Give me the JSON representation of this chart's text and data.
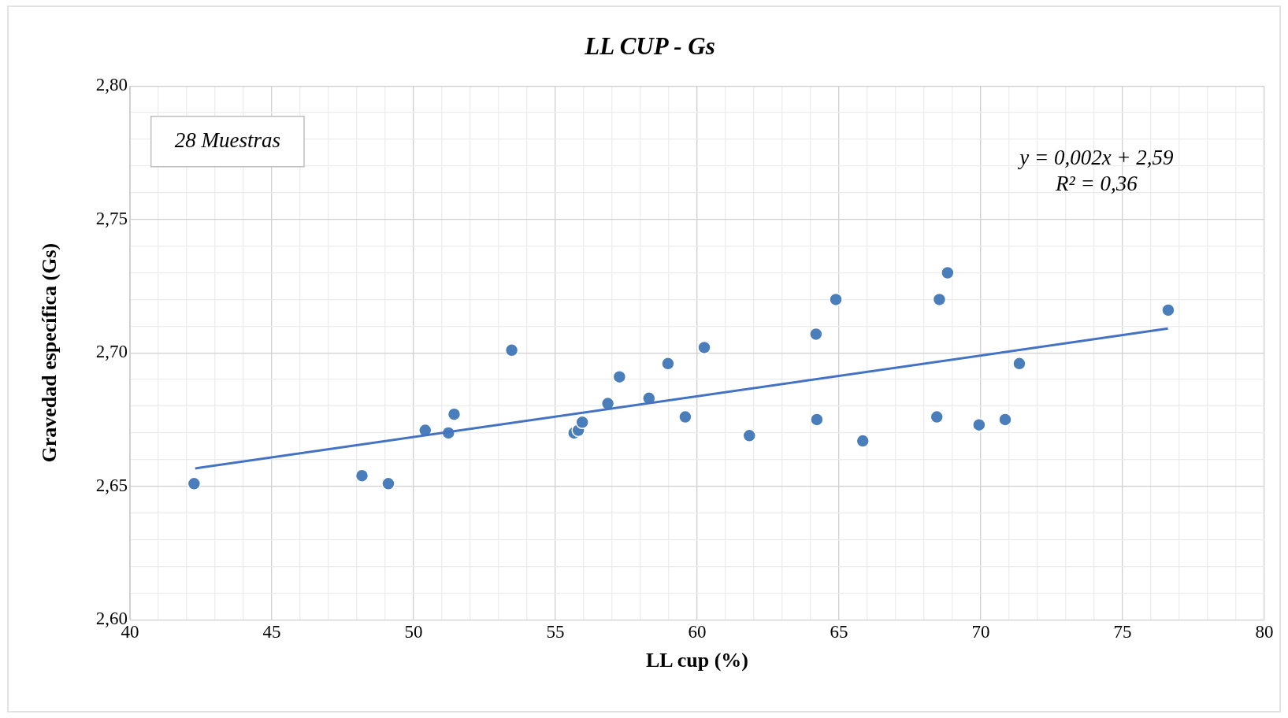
{
  "chart_data": {
    "type": "scatter",
    "title": "LL CUP - Gs",
    "xlabel": "LL cup (%)",
    "ylabel": "Gravedad específica (Gs)",
    "annotations": [
      "28 Muestras",
      "y = 0,002x + 2,59",
      "R² = 0,36"
    ],
    "xlim": [
      40,
      80
    ],
    "ylim": [
      2.6,
      2.8
    ],
    "xticks": [
      40,
      {
        "value": 41,
        "label": null
      },
      {
        "value": 42,
        "label": null
      },
      {
        "value": 43,
        "label": null
      },
      {
        "value": 44,
        "label": null
      },
      45,
      {
        "value": 46,
        "label": null
      },
      {
        "value": 47,
        "label": null
      },
      {
        "value": 48,
        "label": null
      },
      {
        "value": 49,
        "label": null
      },
      50,
      {
        "value": 51,
        "label": null
      },
      {
        "value": 52,
        "label": null
      },
      {
        "value": 53,
        "label": null
      },
      {
        "value": 54,
        "label": null
      },
      55,
      {
        "value": 56,
        "label": null
      },
      {
        "value": 57,
        "label": null
      },
      {
        "value": 58,
        "label": null
      },
      {
        "value": 59,
        "label": null
      },
      60,
      {
        "value": 61,
        "label": null
      },
      {
        "value": 62,
        "label": null
      },
      {
        "value": 63,
        "label": null
      },
      {
        "value": 64,
        "label": null
      },
      65,
      {
        "value": 66,
        "label": null
      },
      {
        "value": 67,
        "label": null
      },
      {
        "value": 68,
        "label": null
      },
      {
        "value": 69,
        "label": null
      },
      70,
      {
        "value": 71,
        "label": null
      },
      {
        "value": 72,
        "label": null
      },
      {
        "value": 73,
        "label": null
      },
      {
        "value": 74,
        "label": null
      },
      75,
      {
        "value": 76,
        "label": null
      },
      {
        "value": 77,
        "label": null
      },
      {
        "value": 78,
        "label": null
      },
      {
        "value": 79,
        "label": null
      },
      80
    ],
    "yticks": [
      {
        "value": 2.6,
        "label": "2,60"
      },
      {
        "value": 2.61,
        "label": null
      },
      {
        "value": 2.62,
        "label": null
      },
      {
        "value": 2.63,
        "label": null
      },
      {
        "value": 2.64,
        "label": null
      },
      {
        "value": 2.65,
        "label": "2,65"
      },
      {
        "value": 2.66,
        "label": null
      },
      {
        "value": 2.67,
        "label": null
      },
      {
        "value": 2.68,
        "label": null
      },
      {
        "value": 2.69,
        "label": null
      },
      {
        "value": 2.7,
        "label": "2,70"
      },
      {
        "value": 2.71,
        "label": null
      },
      {
        "value": 2.72,
        "label": null
      },
      {
        "value": 2.73,
        "label": null
      },
      {
        "value": 2.74,
        "label": null
      },
      {
        "value": 2.75,
        "label": "2,75"
      },
      {
        "value": 2.76,
        "label": null
      },
      {
        "value": 2.77,
        "label": null
      },
      {
        "value": 2.78,
        "label": null
      },
      {
        "value": 2.79,
        "label": null
      },
      {
        "value": 2.8,
        "label": "2,80"
      }
    ],
    "grid": true,
    "legend": false,
    "series": [
      {
        "type": "scatter",
        "marker": "circle",
        "color": "#4a7ebb",
        "x": [
          42.26,
          48.18,
          49.11,
          50.41,
          51.23,
          51.43,
          53.46,
          55.66,
          55.81,
          55.95,
          56.85,
          57.26,
          58.3,
          58.97,
          59.58,
          60.25,
          61.84,
          64.19,
          64.22,
          64.89,
          65.84,
          68.45,
          68.54,
          68.83,
          69.94,
          70.86,
          71.36,
          76.61
        ],
        "values": [
          2.651,
          2.654,
          2.651,
          2.671,
          2.67,
          2.677,
          2.701,
          2.67,
          2.671,
          2.674,
          2.681,
          2.691,
          2.683,
          2.696,
          2.676,
          2.702,
          2.669,
          2.707,
          2.675,
          2.72,
          2.667,
          2.676,
          2.72,
          2.73,
          2.673,
          2.675,
          2.696,
          2.716
        ]
      },
      {
        "type": "line",
        "marker": "none",
        "color": "#4472c4",
        "x": [
          42.3,
          76.6
        ],
        "values": [
          2.6567,
          2.7091
        ]
      }
    ]
  }
}
